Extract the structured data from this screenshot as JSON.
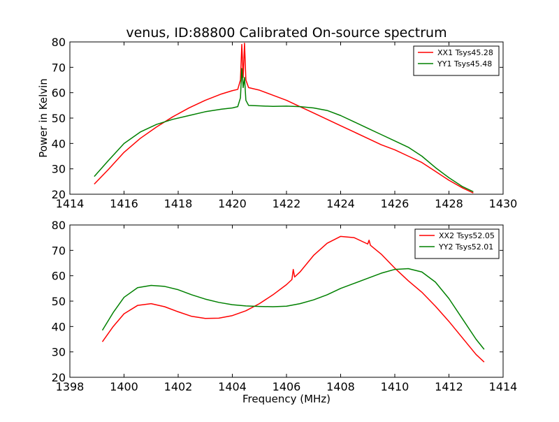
{
  "figure": {
    "title": "venus, ID:88800 Calibrated On-source spectrum",
    "ylabel": "Power in Kelvin",
    "xlabel": "Frequency (MHz)"
  },
  "chart_data": [
    {
      "type": "line",
      "title": "venus, ID:88800 Calibrated On-source spectrum",
      "xlabel": "",
      "ylabel": "Power in Kelvin",
      "xlim": [
        1414,
        1430
      ],
      "ylim": [
        20,
        80
      ],
      "xticks": [
        "1414",
        "1416",
        "1418",
        "1420",
        "1422",
        "1424",
        "1426",
        "1428",
        "1430"
      ],
      "yticks": [
        "20",
        "30",
        "40",
        "50",
        "60",
        "70",
        "80"
      ],
      "grid": false,
      "legend_position": "top-right",
      "series": [
        {
          "name": "XX1 Tsys45.28",
          "color": "#ff0000",
          "x": [
            1414.9,
            1415.4,
            1416.0,
            1416.6,
            1417.2,
            1417.8,
            1418.4,
            1419.0,
            1419.6,
            1420.0,
            1420.2,
            1420.3,
            1420.35,
            1420.4,
            1420.45,
            1420.5,
            1420.6,
            1421.0,
            1421.5,
            1422.0,
            1422.5,
            1423.0,
            1423.5,
            1424.0,
            1424.5,
            1425.0,
            1425.5,
            1426.0,
            1426.5,
            1427.0,
            1427.5,
            1428.0,
            1428.5,
            1428.9
          ],
          "y": [
            24.0,
            29.5,
            36.5,
            42.0,
            46.5,
            50.5,
            54.0,
            57.0,
            59.5,
            60.8,
            61.3,
            65.0,
            79.0,
            66.0,
            79.5,
            65.0,
            62.0,
            61.0,
            59.0,
            57.0,
            54.5,
            52.0,
            49.5,
            47.0,
            44.5,
            42.0,
            39.5,
            37.5,
            35.0,
            32.5,
            29.0,
            25.5,
            22.5,
            20.5
          ]
        },
        {
          "name": "YY1 Tsys45.48",
          "color": "#008000",
          "x": [
            1414.9,
            1415.4,
            1416.0,
            1416.6,
            1417.2,
            1417.8,
            1418.4,
            1419.0,
            1419.6,
            1420.0,
            1420.2,
            1420.3,
            1420.35,
            1420.4,
            1420.45,
            1420.5,
            1420.6,
            1421.0,
            1421.5,
            1422.0,
            1422.5,
            1423.0,
            1423.5,
            1424.0,
            1424.5,
            1425.0,
            1425.5,
            1426.0,
            1426.5,
            1427.0,
            1427.5,
            1428.0,
            1428.5,
            1428.9
          ],
          "y": [
            27.0,
            33.0,
            40.0,
            44.5,
            47.5,
            49.5,
            51.0,
            52.5,
            53.5,
            54.0,
            54.5,
            58.0,
            69.5,
            62.0,
            66.0,
            57.0,
            55.0,
            54.8,
            54.6,
            54.7,
            54.5,
            54.0,
            53.0,
            51.0,
            48.5,
            46.0,
            43.5,
            41.0,
            38.5,
            35.0,
            30.5,
            26.5,
            23.0,
            21.0
          ]
        }
      ]
    },
    {
      "type": "line",
      "title": "",
      "xlabel": "Frequency (MHz)",
      "ylabel": "",
      "xlim": [
        1398,
        1414
      ],
      "ylim": [
        20,
        80
      ],
      "xticks": [
        "1398",
        "1400",
        "1402",
        "1404",
        "1406",
        "1408",
        "1410",
        "1412",
        "1414"
      ],
      "yticks": [
        "20",
        "30",
        "40",
        "50",
        "60",
        "70",
        "80"
      ],
      "grid": false,
      "legend_position": "top-right",
      "series": [
        {
          "name": "XX2 Tsys52.05",
          "color": "#ff0000",
          "x": [
            1399.2,
            1399.6,
            1400.0,
            1400.5,
            1401.0,
            1401.5,
            1402.0,
            1402.5,
            1403.0,
            1403.5,
            1404.0,
            1404.5,
            1405.0,
            1405.5,
            1406.0,
            1406.2,
            1406.25,
            1406.3,
            1406.5,
            1407.0,
            1407.5,
            1408.0,
            1408.5,
            1409.0,
            1409.05,
            1409.1,
            1409.5,
            1410.0,
            1410.5,
            1411.0,
            1411.5,
            1412.0,
            1412.5,
            1413.0,
            1413.3
          ],
          "y": [
            34.0,
            40.0,
            45.0,
            48.3,
            49.0,
            47.8,
            45.8,
            44.0,
            43.2,
            43.3,
            44.3,
            46.2,
            49.0,
            52.5,
            56.5,
            58.5,
            62.5,
            59.5,
            61.5,
            68.0,
            72.8,
            75.5,
            75.0,
            72.5,
            74.0,
            72.0,
            68.5,
            63.0,
            58.0,
            53.5,
            48.0,
            42.0,
            35.5,
            29.0,
            26.0
          ]
        },
        {
          "name": "YY2 Tsys52.01",
          "color": "#008000",
          "x": [
            1399.2,
            1399.6,
            1400.0,
            1400.5,
            1401.0,
            1401.5,
            1402.0,
            1402.5,
            1403.0,
            1403.5,
            1404.0,
            1404.5,
            1405.0,
            1405.5,
            1406.0,
            1406.5,
            1407.0,
            1407.5,
            1408.0,
            1408.5,
            1409.0,
            1409.5,
            1410.0,
            1410.5,
            1411.0,
            1411.5,
            1412.0,
            1412.5,
            1413.0,
            1413.3
          ],
          "y": [
            38.5,
            45.5,
            51.5,
            55.3,
            56.2,
            55.8,
            54.5,
            52.5,
            50.8,
            49.5,
            48.6,
            48.1,
            47.9,
            47.8,
            48.0,
            49.0,
            50.5,
            52.5,
            55.0,
            57.0,
            59.0,
            61.0,
            62.5,
            62.8,
            61.5,
            57.5,
            51.0,
            43.0,
            35.0,
            31.0
          ]
        }
      ]
    }
  ]
}
